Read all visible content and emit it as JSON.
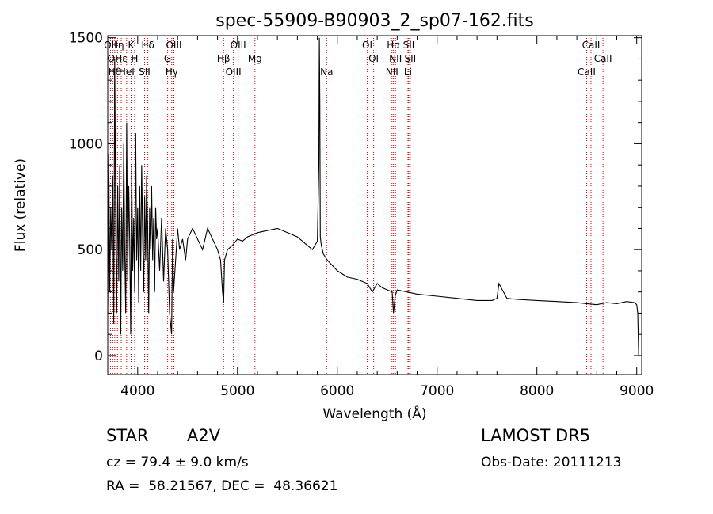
{
  "chart_data": {
    "type": "line",
    "title": "spec-55909-B90903_2_sp07-162.fits",
    "xlabel": "Wavelength (Å)",
    "ylabel": "Flux (relative)",
    "xlim": [
      3700,
      9050
    ],
    "ylim": [
      -90,
      1510
    ],
    "xticks": [
      4000,
      5000,
      6000,
      7000,
      8000,
      9000
    ],
    "yticks": [
      0,
      500,
      1000,
      1500
    ],
    "line_color": "#000000",
    "marker_color": "#cc0000",
    "spectrum": {
      "x": [
        3700,
        3710,
        3720,
        3730,
        3740,
        3750,
        3760,
        3770,
        3780,
        3790,
        3800,
        3810,
        3820,
        3830,
        3840,
        3850,
        3860,
        3870,
        3880,
        3890,
        3900,
        3910,
        3920,
        3930,
        3940,
        3950,
        3960,
        3970,
        3980,
        3990,
        4000,
        4010,
        4020,
        4030,
        4040,
        4050,
        4060,
        4070,
        4080,
        4090,
        4100,
        4110,
        4120,
        4130,
        4140,
        4150,
        4160,
        4170,
        4180,
        4190,
        4200,
        4220,
        4240,
        4260,
        4280,
        4300,
        4320,
        4340,
        4350,
        4360,
        4380,
        4400,
        4420,
        4450,
        4480,
        4500,
        4550,
        4600,
        4650,
        4700,
        4750,
        4800,
        4830,
        4850,
        4861,
        4870,
        4900,
        4950,
        5000,
        5050,
        5100,
        5150,
        5200,
        5300,
        5400,
        5500,
        5600,
        5700,
        5750,
        5800,
        5815,
        5820,
        5825,
        5830,
        5840,
        5860,
        5900,
        6000,
        6100,
        6200,
        6300,
        6350,
        6400,
        6450,
        6500,
        6550,
        6563,
        6580,
        6600,
        6700,
        6800,
        7000,
        7200,
        7400,
        7550,
        7600,
        7620,
        7700,
        7800,
        8000,
        8200,
        8400,
        8500,
        8600,
        8700,
        8800,
        8900,
        8980,
        9000,
        9010,
        9020
      ],
      "y": [
        200,
        950,
        300,
        700,
        500,
        850,
        150,
        1400,
        600,
        200,
        800,
        350,
        900,
        100,
        700,
        400,
        1000,
        500,
        200,
        1100,
        350,
        800,
        550,
        100,
        900,
        400,
        650,
        300,
        1050,
        450,
        700,
        250,
        800,
        400,
        900,
        550,
        300,
        750,
        450,
        850,
        600,
        200,
        700,
        500,
        800,
        450,
        650,
        300,
        700,
        550,
        600,
        400,
        650,
        350,
        600,
        500,
        200,
        100,
        550,
        300,
        450,
        600,
        500,
        550,
        450,
        550,
        600,
        550,
        500,
        600,
        550,
        500,
        450,
        300,
        250,
        450,
        500,
        520,
        550,
        540,
        560,
        570,
        580,
        590,
        600,
        580,
        560,
        520,
        500,
        540,
        900,
        1500,
        1200,
        560,
        520,
        480,
        450,
        400,
        370,
        360,
        340,
        300,
        340,
        320,
        310,
        300,
        200,
        280,
        310,
        300,
        290,
        280,
        270,
        260,
        260,
        270,
        340,
        270,
        265,
        260,
        255,
        250,
        245,
        240,
        250,
        245,
        255,
        250,
        240,
        200,
        0
      ]
    },
    "lines": [
      {
        "wl": 3727,
        "top": "OII"
      },
      {
        "wl": 3750,
        "top": "OI"
      },
      {
        "wl": 3770,
        "top": "Hθ"
      },
      {
        "wl": 3798,
        "top": "Hη"
      },
      {
        "wl": 3835,
        "top": "Hε"
      },
      {
        "wl": 3889,
        "top": "HeI"
      },
      {
        "wl": 3934,
        "top": "K"
      },
      {
        "wl": 3969,
        "top": "H"
      },
      {
        "wl": 4069,
        "top": "SII"
      },
      {
        "wl": 4102,
        "top": "Hδ"
      },
      {
        "wl": 4300,
        "top": "G"
      },
      {
        "wl": 4341,
        "top": "Hγ"
      },
      {
        "wl": 4363,
        "top": "OIII"
      },
      {
        "wl": 4861,
        "top": "Hβ"
      },
      {
        "wl": 4959,
        "top": "OIII"
      },
      {
        "wl": 5007,
        "top": "OIII"
      },
      {
        "wl": 5175,
        "top": "Mg"
      },
      {
        "wl": 5893,
        "top": "Na"
      },
      {
        "wl": 6300,
        "top": "OI"
      },
      {
        "wl": 6364,
        "top": "OI"
      },
      {
        "wl": 6548,
        "top": "NII"
      },
      {
        "wl": 6563,
        "top": "Hα"
      },
      {
        "wl": 6583,
        "top": "NII"
      },
      {
        "wl": 6708,
        "top": "Li"
      },
      {
        "wl": 6716,
        "top": "SII"
      },
      {
        "wl": 6731,
        "top": "SII"
      },
      {
        "wl": 8498,
        "top": "CaII"
      },
      {
        "wl": 8542,
        "top": "CaII"
      },
      {
        "wl": 8662,
        "top": "CaII"
      }
    ]
  },
  "info": {
    "class": "STAR",
    "subclass": "A2V",
    "survey": "LAMOST DR5",
    "cz": "cz = 79.4 ± 9.0 km/s",
    "obs_date": "Obs-Date: 20111213",
    "radec": "RA =  58.21567, DEC =  48.36621"
  }
}
